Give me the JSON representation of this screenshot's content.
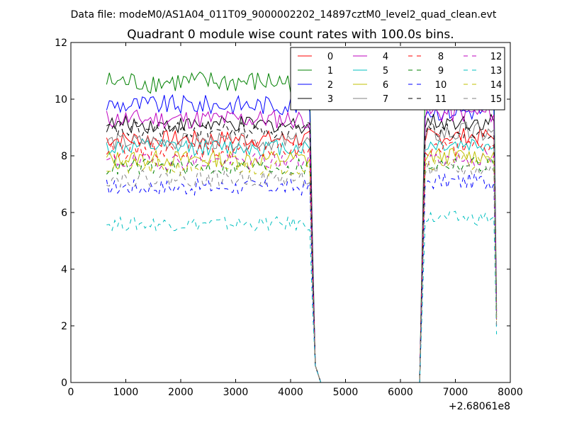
{
  "chart_data": {
    "type": "line",
    "suptitle": "Data file: modeM0/AS1A04_011T09_9000002202_14897cztM0_level2_quad_clean.evt",
    "title": "Quadrant 0 module wise count rates with 100.0s bins.",
    "xlabel": "",
    "ylabel": "",
    "x_offset_label": "+2.68061e8",
    "xlim": [
      0,
      8000
    ],
    "ylim": [
      0,
      12
    ],
    "xticks": [
      0,
      1000,
      2000,
      3000,
      4000,
      5000,
      6000,
      7000,
      8000
    ],
    "yticks": [
      0,
      2,
      4,
      6,
      8,
      10,
      12
    ],
    "xtick_labels": [
      "0",
      "1000",
      "2000",
      "3000",
      "4000",
      "5000",
      "6000",
      "7000",
      "8000"
    ],
    "ytick_labels": [
      "0",
      "2",
      "4",
      "6",
      "8",
      "10",
      "12"
    ],
    "legend_position": "top-right",
    "legend_columns": 4,
    "x_segments": {
      "seg1_start": 650,
      "seg1_end": 4350,
      "drop_points": [
        [
          4400,
          4.0
        ],
        [
          4450,
          0.6
        ],
        [
          4550,
          0.0
        ]
      ],
      "gap_end": 6350,
      "rise_points": [
        [
          6350,
          0.0
        ],
        [
          6450,
          8.5
        ]
      ],
      "seg2_start": 6500,
      "seg2_end": 7650,
      "tail_points": [
        [
          7700,
          9.5
        ],
        [
          7750,
          2.3
        ]
      ],
      "step": 50
    },
    "series": [
      {
        "name": "0",
        "color": "#ff0000",
        "dash": "solid",
        "base1": 8.6,
        "amp1": 0.3,
        "base2": 8.7,
        "amp2": 0.3,
        "tail": 2.4
      },
      {
        "name": "1",
        "color": "#008000",
        "dash": "solid",
        "base1": 10.6,
        "amp1": 0.4,
        "base2": 10.8,
        "amp2": 0.4,
        "tail": 2.7
      },
      {
        "name": "2",
        "color": "#0000ff",
        "dash": "solid",
        "base1": 9.8,
        "amp1": 0.35,
        "base2": 9.6,
        "amp2": 0.35,
        "tail": 2.6
      },
      {
        "name": "3",
        "color": "#000000",
        "dash": "solid",
        "base1": 9.1,
        "amp1": 0.3,
        "base2": 9.2,
        "amp2": 0.3,
        "tail": 2.5
      },
      {
        "name": "4",
        "color": "#bf00bf",
        "dash": "solid",
        "base1": 9.3,
        "amp1": 0.35,
        "base2": 9.5,
        "amp2": 0.35,
        "tail": 2.5
      },
      {
        "name": "5",
        "color": "#00bfbf",
        "dash": "solid",
        "base1": 8.3,
        "amp1": 0.3,
        "base2": 8.4,
        "amp2": 0.3,
        "tail": 2.3
      },
      {
        "name": "6",
        "color": "#bfbf00",
        "dash": "solid",
        "base1": 7.9,
        "amp1": 0.3,
        "base2": 8.0,
        "amp2": 0.3,
        "tail": 2.2
      },
      {
        "name": "7",
        "color": "#808080",
        "dash": "solid",
        "base1": 8.5,
        "amp1": 0.3,
        "base2": 8.8,
        "amp2": 0.4,
        "tail": 2.3
      },
      {
        "name": "8",
        "color": "#ff0000",
        "dash": "dashed",
        "base1": 8.2,
        "amp1": 0.3,
        "base2": 8.3,
        "amp2": 0.3,
        "tail": 2.3
      },
      {
        "name": "9",
        "color": "#008000",
        "dash": "dashed",
        "base1": 7.6,
        "amp1": 0.3,
        "base2": 7.7,
        "amp2": 0.3,
        "tail": 2.2
      },
      {
        "name": "10",
        "color": "#0000ff",
        "dash": "dashed",
        "base1": 6.9,
        "amp1": 0.3,
        "base2": 7.1,
        "amp2": 0.3,
        "tail": 2.0
      },
      {
        "name": "11",
        "color": "#000000",
        "dash": "dashed",
        "base1": 8.9,
        "amp1": 0.3,
        "base2": 8.9,
        "amp2": 0.3,
        "tail": 2.4
      },
      {
        "name": "12",
        "color": "#bf00bf",
        "dash": "dashed",
        "base1": 7.8,
        "amp1": 0.3,
        "base2": 7.9,
        "amp2": 0.3,
        "tail": 2.2
      },
      {
        "name": "13",
        "color": "#00bfbf",
        "dash": "dashed",
        "base1": 5.6,
        "amp1": 0.25,
        "base2": 5.8,
        "amp2": 0.25,
        "tail": 1.7
      },
      {
        "name": "14",
        "color": "#bfbf00",
        "dash": "dashed",
        "base1": 7.6,
        "amp1": 0.3,
        "base2": 7.8,
        "amp2": 0.3,
        "tail": 2.1
      },
      {
        "name": "15",
        "color": "#808080",
        "dash": "dashed",
        "base1": 7.2,
        "amp1": 0.3,
        "base2": 7.5,
        "amp2": 0.3,
        "tail": 2.0
      }
    ]
  }
}
